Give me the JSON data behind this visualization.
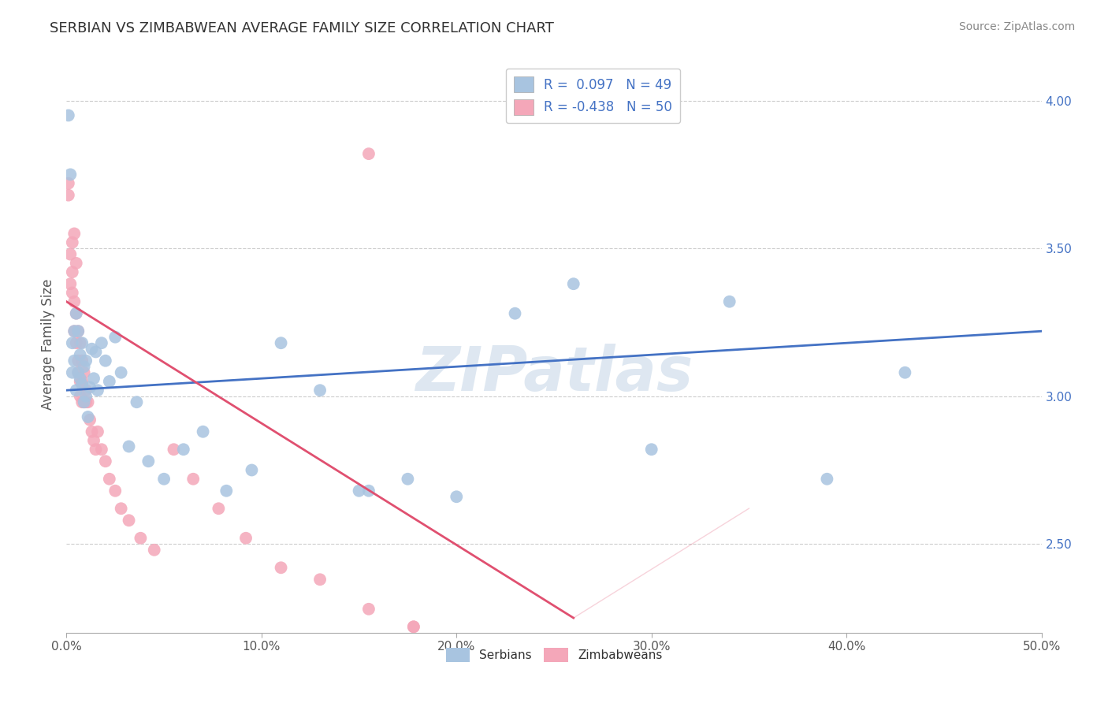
{
  "title": "SERBIAN VS ZIMBABWEAN AVERAGE FAMILY SIZE CORRELATION CHART",
  "source_text": "Source: ZipAtlas.com",
  "ylabel": "Average Family Size",
  "xlim": [
    0.0,
    0.5
  ],
  "ylim": [
    2.2,
    4.15
  ],
  "xtick_labels": [
    "0.0%",
    "10.0%",
    "20.0%",
    "30.0%",
    "40.0%",
    "50.0%"
  ],
  "xtick_values": [
    0.0,
    0.1,
    0.2,
    0.3,
    0.4,
    0.5
  ],
  "ytick_labels_right": [
    "4.00",
    "3.50",
    "3.00",
    "2.50"
  ],
  "ytick_values_right": [
    4.0,
    3.5,
    3.0,
    2.5
  ],
  "legend_serbian": "R =  0.097   N = 49",
  "legend_zimbabwean": "R = -0.438   N = 50",
  "serbian_color": "#a8c4e0",
  "zimbabwean_color": "#f4a7b9",
  "serbian_line_color": "#4472c4",
  "zimbabwean_line_color": "#e05070",
  "grid_color": "#cccccc",
  "background_color": "#ffffff",
  "watermark_text": "ZIPatlas",
  "watermark_color": "#c8d8e8",
  "serbian_x": [
    0.001,
    0.002,
    0.003,
    0.003,
    0.004,
    0.004,
    0.005,
    0.005,
    0.006,
    0.006,
    0.007,
    0.007,
    0.008,
    0.008,
    0.009,
    0.009,
    0.01,
    0.01,
    0.011,
    0.012,
    0.013,
    0.014,
    0.015,
    0.016,
    0.018,
    0.02,
    0.022,
    0.025,
    0.028,
    0.032,
    0.036,
    0.042,
    0.05,
    0.06,
    0.07,
    0.082,
    0.095,
    0.11,
    0.13,
    0.15,
    0.175,
    0.2,
    0.23,
    0.26,
    0.3,
    0.34,
    0.39,
    0.43,
    0.155
  ],
  "serbian_y": [
    3.95,
    3.75,
    3.18,
    3.08,
    3.22,
    3.12,
    3.02,
    3.28,
    3.08,
    3.22,
    3.06,
    3.14,
    3.04,
    3.18,
    2.98,
    3.1,
    3.0,
    3.12,
    2.93,
    3.03,
    3.16,
    3.06,
    3.15,
    3.02,
    3.18,
    3.12,
    3.05,
    3.2,
    3.08,
    2.83,
    2.98,
    2.78,
    2.72,
    2.82,
    2.88,
    2.68,
    2.75,
    3.18,
    3.02,
    2.68,
    2.72,
    2.66,
    3.28,
    3.38,
    2.82,
    3.32,
    2.72,
    3.08,
    2.68
  ],
  "zimbabwean_x": [
    0.001,
    0.001,
    0.002,
    0.002,
    0.003,
    0.003,
    0.003,
    0.004,
    0.004,
    0.004,
    0.005,
    0.005,
    0.005,
    0.006,
    0.006,
    0.006,
    0.007,
    0.007,
    0.007,
    0.008,
    0.008,
    0.008,
    0.009,
    0.009,
    0.01,
    0.01,
    0.011,
    0.012,
    0.013,
    0.014,
    0.015,
    0.016,
    0.018,
    0.02,
    0.022,
    0.025,
    0.028,
    0.032,
    0.038,
    0.045,
    0.055,
    0.065,
    0.078,
    0.092,
    0.11,
    0.13,
    0.155,
    0.178,
    0.155,
    0.178
  ],
  "zimbabwean_y": [
    3.68,
    3.72,
    3.48,
    3.38,
    3.52,
    3.42,
    3.35,
    3.32,
    3.22,
    3.55,
    3.28,
    3.18,
    3.45,
    3.22,
    3.12,
    3.08,
    3.18,
    3.05,
    3.0,
    3.12,
    2.98,
    3.05,
    3.08,
    2.98,
    2.98,
    3.02,
    2.98,
    2.92,
    2.88,
    2.85,
    2.82,
    2.88,
    2.82,
    2.78,
    2.72,
    2.68,
    2.62,
    2.58,
    2.52,
    2.48,
    2.82,
    2.72,
    2.62,
    2.52,
    2.42,
    2.38,
    2.28,
    2.22,
    3.82,
    2.22
  ],
  "serb_line_x": [
    0.0,
    0.5
  ],
  "serb_line_y": [
    3.02,
    3.22
  ],
  "zimb_line_x": [
    0.0,
    0.26
  ],
  "zimb_line_y": [
    3.32,
    2.25
  ]
}
